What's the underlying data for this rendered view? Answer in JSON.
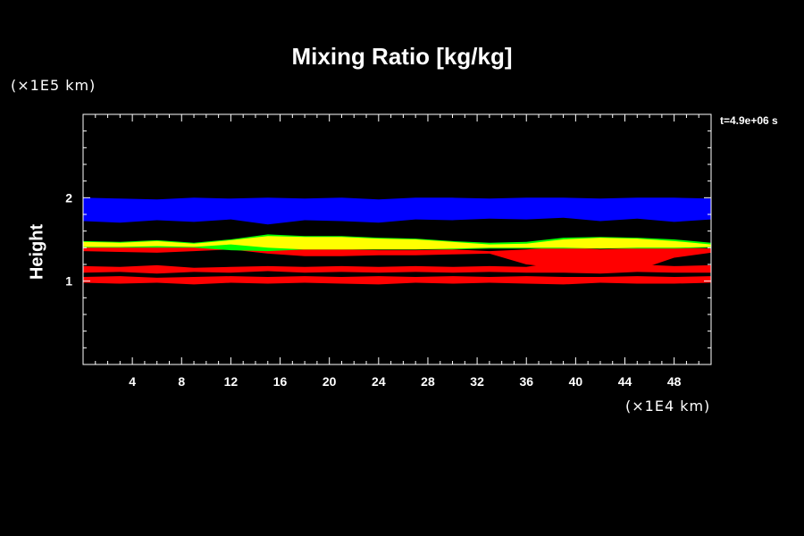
{
  "chart_data": {
    "type": "area",
    "title": "Mixing Ratio [kg/kg]",
    "xlabel": "",
    "ylabel": "Height",
    "x_unit": "(×1E4 km)",
    "y_unit": "(×1E5 km)",
    "annotation": "t=4.9e+06 s",
    "xlim": [
      0,
      51
    ],
    "ylim": [
      0,
      3
    ],
    "x_ticks": [
      4,
      8,
      12,
      16,
      20,
      24,
      28,
      32,
      36,
      40,
      44,
      48
    ],
    "y_ticks": [
      1,
      2
    ],
    "background": "#000000",
    "series": [
      {
        "color": "#0000ff",
        "x": [
          0,
          3,
          6,
          9,
          12,
          15,
          18,
          21,
          24,
          27,
          30,
          33,
          36,
          39,
          42,
          45,
          48,
          51
        ],
        "y_lower": [
          1.72,
          1.7,
          1.73,
          1.71,
          1.74,
          1.68,
          1.73,
          1.72,
          1.7,
          1.74,
          1.73,
          1.75,
          1.74,
          1.76,
          1.72,
          1.75,
          1.71,
          1.74
        ],
        "y_upper": [
          2.0,
          1.99,
          1.98,
          2.0,
          1.99,
          2.0,
          1.99,
          2.0,
          1.98,
          2.0,
          2.0,
          1.99,
          2.0,
          2.0,
          1.99,
          2.0,
          2.0,
          1.99
        ]
      },
      {
        "color": "#ff0000",
        "x": [
          0,
          3,
          6,
          9,
          12,
          15,
          18,
          21,
          24,
          27,
          30,
          33,
          36,
          38,
          40,
          42,
          44,
          46,
          48,
          51
        ],
        "y_lower": [
          1.36,
          1.35,
          1.34,
          1.36,
          1.38,
          1.33,
          1.3,
          1.3,
          1.31,
          1.31,
          1.32,
          1.33,
          1.2,
          1.17,
          1.12,
          1.1,
          1.12,
          1.18,
          1.28,
          1.34
        ],
        "y_upper": [
          1.41,
          1.41,
          1.42,
          1.41,
          1.44,
          1.45,
          1.38,
          1.38,
          1.37,
          1.37,
          1.38,
          1.36,
          1.38,
          1.4,
          1.4,
          1.38,
          1.39,
          1.4,
          1.4,
          1.39
        ]
      },
      {
        "color": "#00ff00",
        "x": [
          0,
          3,
          6,
          9,
          12,
          15,
          18,
          21,
          24,
          27,
          30,
          33,
          36,
          39,
          42,
          45,
          48,
          51
        ],
        "y_lower": [
          1.4,
          1.4,
          1.4,
          1.4,
          1.37,
          1.36,
          1.38,
          1.38,
          1.38,
          1.38,
          1.38,
          1.39,
          1.39,
          1.39,
          1.39,
          1.39,
          1.39,
          1.4
        ],
        "y_upper": [
          1.48,
          1.47,
          1.49,
          1.46,
          1.5,
          1.56,
          1.54,
          1.54,
          1.52,
          1.51,
          1.48,
          1.46,
          1.47,
          1.52,
          1.53,
          1.52,
          1.5,
          1.46
        ]
      },
      {
        "color": "#ffff00",
        "x": [
          0,
          3,
          6,
          9,
          12,
          15,
          18,
          21,
          24,
          27,
          30,
          33,
          36,
          39,
          42,
          45,
          48,
          51
        ],
        "y_lower": [
          1.41,
          1.41,
          1.42,
          1.41,
          1.44,
          1.4,
          1.38,
          1.38,
          1.38,
          1.38,
          1.39,
          1.4,
          1.4,
          1.4,
          1.39,
          1.4,
          1.4,
          1.41
        ],
        "y_upper": [
          1.47,
          1.46,
          1.48,
          1.45,
          1.49,
          1.54,
          1.53,
          1.53,
          1.51,
          1.5,
          1.47,
          1.44,
          1.45,
          1.5,
          1.52,
          1.51,
          1.48,
          1.44
        ]
      },
      {
        "color": "#ff0000",
        "x": [
          0,
          3,
          6,
          9,
          12,
          15,
          18,
          21,
          24,
          27,
          30,
          33,
          36,
          39,
          42,
          45,
          48,
          51
        ],
        "y_lower": [
          0.98,
          0.97,
          0.98,
          0.96,
          0.98,
          0.97,
          0.98,
          0.97,
          0.96,
          0.98,
          0.97,
          0.98,
          0.97,
          0.96,
          0.98,
          0.97,
          0.97,
          0.98
        ],
        "y_upper": [
          1.18,
          1.17,
          1.19,
          1.16,
          1.17,
          1.18,
          1.17,
          1.18,
          1.17,
          1.18,
          1.17,
          1.18,
          1.17,
          1.24,
          1.23,
          1.2,
          1.18,
          1.19
        ]
      },
      {
        "color": "#000000",
        "x": [
          0,
          3,
          6,
          9,
          12,
          15,
          18,
          21,
          24,
          27,
          30,
          33,
          36,
          39,
          42,
          45,
          48,
          51
        ],
        "y_lower": [
          1.05,
          1.06,
          1.04,
          1.05,
          1.06,
          1.05,
          1.06,
          1.05,
          1.06,
          1.05,
          1.06,
          1.05,
          1.06,
          1.05,
          1.05,
          1.06,
          1.05,
          1.06
        ],
        "y_upper": [
          1.1,
          1.11,
          1.09,
          1.11,
          1.1,
          1.12,
          1.1,
          1.11,
          1.1,
          1.11,
          1.1,
          1.11,
          1.1,
          1.1,
          1.09,
          1.11,
          1.1,
          1.1
        ]
      }
    ]
  }
}
